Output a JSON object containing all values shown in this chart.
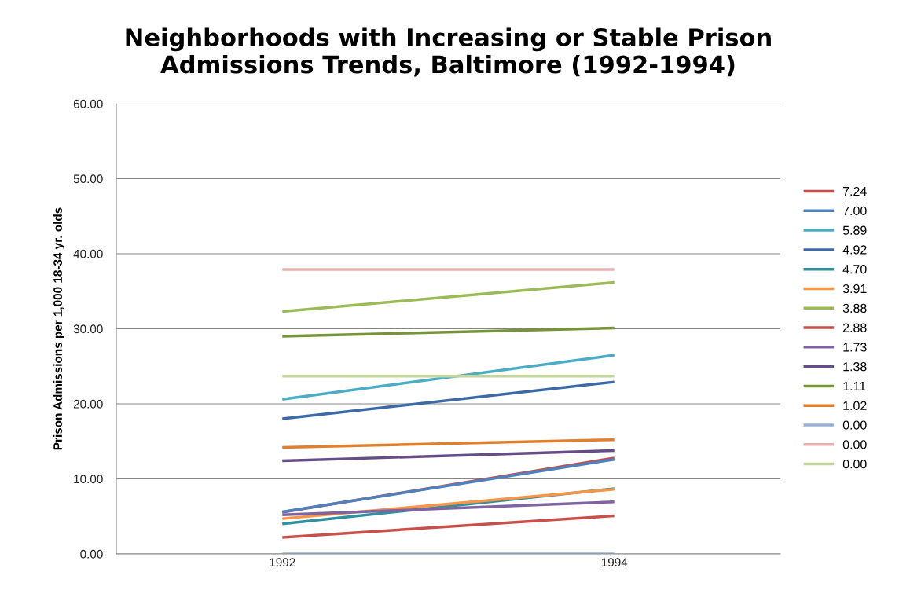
{
  "chart_data": {
    "type": "line",
    "title": "Neighborhoods with Increasing or Stable Prison\nAdmissions Trends, Baltimore (1992-1994)",
    "ylabel": "Prison Admissions per 1,000 18-34 yr. olds",
    "categories": [
      "1992",
      "1994"
    ],
    "series": [
      {
        "name": "7.24",
        "color": "#c0504d",
        "values": [
          5.55,
          12.79
        ]
      },
      {
        "name": "7.00",
        "color": "#4f81bd",
        "values": [
          5.6,
          12.6
        ]
      },
      {
        "name": "5.89",
        "color": "#4bacc6",
        "values": [
          20.6,
          26.49
        ]
      },
      {
        "name": "4.92",
        "color": "#3c6aa7",
        "values": [
          18.0,
          22.92
        ]
      },
      {
        "name": "4.70",
        "color": "#31909f",
        "values": [
          4.0,
          8.7
        ]
      },
      {
        "name": "3.91",
        "color": "#f79646",
        "values": [
          4.7,
          8.61
        ]
      },
      {
        "name": "3.88",
        "color": "#9bbb59",
        "values": [
          32.3,
          36.18
        ]
      },
      {
        "name": "2.88",
        "color": "#c8504a",
        "values": [
          2.2,
          5.08
        ]
      },
      {
        "name": "1.73",
        "color": "#8064a2",
        "values": [
          5.2,
          6.93
        ]
      },
      {
        "name": "1.38",
        "color": "#654d86",
        "values": [
          12.4,
          13.78
        ]
      },
      {
        "name": "1.11",
        "color": "#77933c",
        "values": [
          29.0,
          30.11
        ]
      },
      {
        "name": "1.02",
        "color": "#e07f2e",
        "values": [
          14.2,
          15.22
        ]
      },
      {
        "name": "0.00",
        "color": "#95b3d7",
        "values": [
          0.0,
          0.0
        ]
      },
      {
        "name": "0.00",
        "color": "#e6b0b0",
        "values": [
          37.9,
          37.9
        ]
      },
      {
        "name": "0.00",
        "color": "#c3d69b",
        "values": [
          23.7,
          23.7
        ]
      }
    ],
    "ylim": [
      0,
      60
    ],
    "yticks": [
      {
        "value": 0,
        "label": "0.00"
      },
      {
        "value": 10,
        "label": "10.00"
      },
      {
        "value": 20,
        "label": "20.00"
      },
      {
        "value": 30,
        "label": "30.00"
      },
      {
        "value": 40,
        "label": "40.00"
      },
      {
        "value": 50,
        "label": "50.00"
      },
      {
        "value": 60,
        "label": "60.00"
      }
    ],
    "grid": "y",
    "legend": "right",
    "marker": "none",
    "line_style": "solid"
  }
}
